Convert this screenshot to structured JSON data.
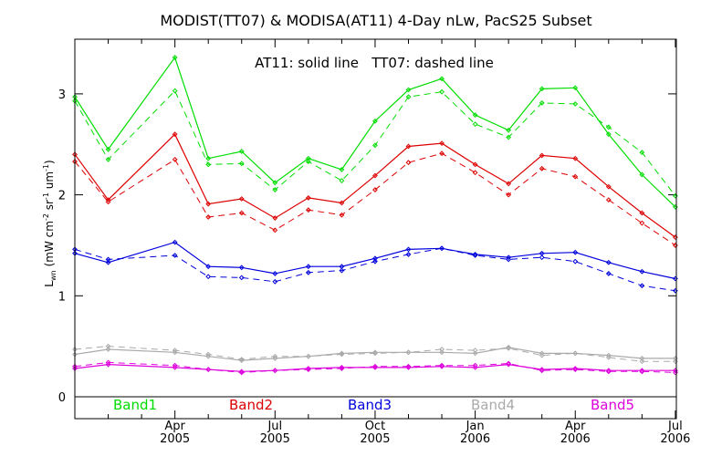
{
  "chart_data": {
    "type": "line",
    "title": "MODIST(TT07) & MODISA(AT11) 4-Day nLw, PacS25 Subset",
    "annotation": "AT11: solid line   TT07: dashed line",
    "ylabel_main": "L",
    "ylabel_sub": "wn",
    "ylabel_units_prefix": "(mW cm",
    "ylabel_units_exp1": "-2",
    "ylabel_units_mid": " sr",
    "ylabel_units_exp2": "-1",
    "ylabel_units_mid2": " um",
    "ylabel_units_exp3": "-1",
    "ylabel_units_suffix": ")",
    "ylim": [
      -0.22,
      3.5
    ],
    "yticks": [
      0,
      1,
      2,
      3
    ],
    "xticks": [
      {
        "month": "Apr",
        "year": "2005",
        "x": 3
      },
      {
        "month": "Jul",
        "year": "2005",
        "x": 6
      },
      {
        "month": "Oct",
        "year": "2005",
        "x": 9
      },
      {
        "month": "Jan",
        "year": "2006",
        "x": 12
      },
      {
        "month": "Apr",
        "year": "2006",
        "x": 15
      },
      {
        "month": "Jul",
        "year": "2006",
        "x": 18
      }
    ],
    "xlim": [
      0,
      18.15
    ],
    "x": [
      0,
      1,
      3,
      4,
      5,
      6,
      7,
      8,
      9,
      10,
      11,
      12,
      13,
      14,
      15,
      16,
      17,
      18
    ],
    "x_months": [
      "Jan 2005",
      "Feb 2005",
      "Apr 2005",
      "May 2005",
      "Jun 2005",
      "Jul 2005",
      "Aug 2005",
      "Sep 2005",
      "Oct 2005",
      "Nov 2005",
      "Dec 2005",
      "Jan 2006",
      "Feb 2006",
      "Mar 2006",
      "Apr 2006",
      "May 2006",
      "Jun 2006",
      "Jul 2006"
    ],
    "grid": false,
    "legend": "bottom",
    "series": [
      {
        "name": "Band1",
        "color": "#00dd00",
        "solid": [
          2.97,
          2.45,
          3.36,
          2.36,
          2.43,
          2.12,
          2.36,
          2.25,
          2.73,
          3.04,
          3.15,
          2.79,
          2.64,
          3.05,
          3.06,
          2.6,
          2.2,
          1.88
        ],
        "dashed": [
          2.93,
          2.35,
          3.03,
          2.3,
          2.31,
          2.05,
          2.33,
          2.14,
          2.49,
          2.97,
          3.02,
          2.7,
          2.57,
          2.91,
          2.9,
          2.67,
          2.42,
          1.99
        ]
      },
      {
        "name": "Band2",
        "color": "#dd0000",
        "solid": [
          2.4,
          1.95,
          2.6,
          1.91,
          1.96,
          1.77,
          1.97,
          1.92,
          2.19,
          2.48,
          2.51,
          2.3,
          2.11,
          2.39,
          2.36,
          2.08,
          1.82,
          1.58
        ],
        "dashed": [
          2.33,
          1.93,
          2.35,
          1.78,
          1.82,
          1.65,
          1.85,
          1.8,
          2.05,
          2.32,
          2.41,
          2.22,
          2.0,
          2.26,
          2.18,
          1.95,
          1.72,
          1.5
        ]
      },
      {
        "name": "Band3",
        "color": "#0000dd",
        "solid": [
          1.42,
          1.33,
          1.53,
          1.29,
          1.28,
          1.22,
          1.29,
          1.29,
          1.37,
          1.46,
          1.47,
          1.41,
          1.38,
          1.42,
          1.43,
          1.33,
          1.24,
          1.17
        ],
        "dashed": [
          1.46,
          1.36,
          1.4,
          1.19,
          1.18,
          1.14,
          1.23,
          1.25,
          1.34,
          1.41,
          1.47,
          1.4,
          1.36,
          1.38,
          1.34,
          1.22,
          1.1,
          1.05
        ]
      },
      {
        "name": "Band4",
        "color": "#aaaaaa",
        "solid": [
          0.42,
          0.47,
          0.44,
          0.4,
          0.36,
          0.38,
          0.4,
          0.43,
          0.44,
          0.44,
          0.44,
          0.43,
          0.49,
          0.43,
          0.43,
          0.41,
          0.38,
          0.38
        ],
        "dashed": [
          0.47,
          0.5,
          0.46,
          0.42,
          0.37,
          0.4,
          0.4,
          0.42,
          0.43,
          0.44,
          0.47,
          0.46,
          0.48,
          0.41,
          0.43,
          0.39,
          0.35,
          0.35
        ]
      },
      {
        "name": "Band5",
        "color": "#dd00dd",
        "solid": [
          0.28,
          0.32,
          0.29,
          0.27,
          0.25,
          0.26,
          0.28,
          0.29,
          0.29,
          0.29,
          0.3,
          0.29,
          0.32,
          0.27,
          0.28,
          0.26,
          0.26,
          0.26
        ],
        "dashed": [
          0.3,
          0.34,
          0.31,
          0.27,
          0.24,
          0.26,
          0.27,
          0.28,
          0.3,
          0.3,
          0.31,
          0.31,
          0.33,
          0.26,
          0.27,
          0.25,
          0.25,
          0.24
        ]
      }
    ]
  }
}
